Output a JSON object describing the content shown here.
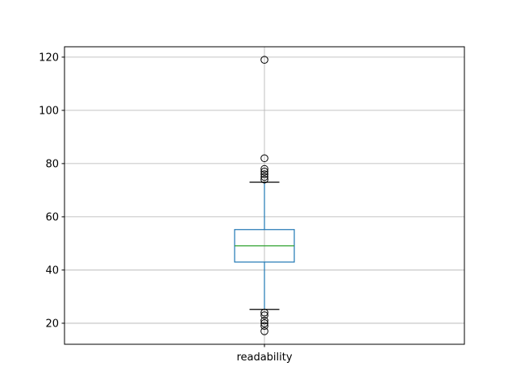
{
  "chart_data": {
    "type": "box",
    "title": "",
    "xlabel": "",
    "ylabel": "",
    "categories": [
      "readability"
    ],
    "ylim": [
      12.1,
      123.9
    ],
    "yticks": [
      20,
      40,
      60,
      80,
      100,
      120
    ],
    "grid": true,
    "boxes": [
      {
        "name": "readability",
        "q1": 43.0,
        "median": 49.1,
        "q3": 55.2,
        "whisker_low": 25.2,
        "whisker_high": 73.0,
        "outliers": [
          119,
          82,
          78,
          77,
          76,
          75,
          74,
          24,
          23,
          21,
          20,
          19,
          17
        ]
      }
    ],
    "colors": {
      "box": "#1f77b4",
      "median": "#2ca02c",
      "whisker": "#1f77b4",
      "caps": "#000000",
      "grid": "#b0b0b0"
    }
  }
}
